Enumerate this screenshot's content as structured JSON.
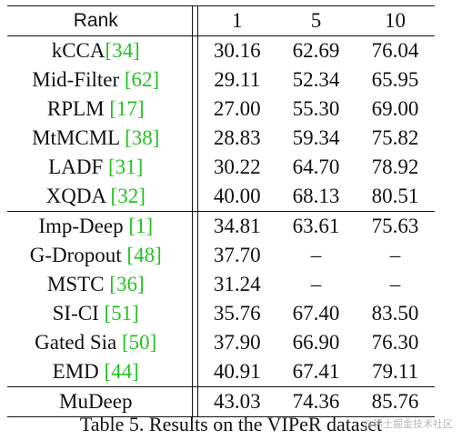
{
  "table": {
    "header": {
      "rank_label": "Rank",
      "columns": [
        "1",
        "5",
        "10"
      ]
    },
    "groups": [
      {
        "rows": [
          {
            "method": "kCCA",
            "ref": "[34]",
            "values": [
              "30.16",
              "62.69",
              "76.04"
            ]
          },
          {
            "method": "Mid-Filter ",
            "ref": "[62]",
            "values": [
              "29.11",
              "52.34",
              "65.95"
            ]
          },
          {
            "method": "RPLM ",
            "ref": "[17]",
            "values": [
              "27.00",
              "55.30",
              "69.00"
            ]
          },
          {
            "method": "MtMCML ",
            "ref": "[38]",
            "values": [
              "28.83",
              "59.34",
              "75.82"
            ]
          },
          {
            "method": "LADF ",
            "ref": "[31]",
            "values": [
              "30.22",
              "64.70",
              "78.92"
            ]
          },
          {
            "method": "XQDA ",
            "ref": "[32]",
            "values": [
              "40.00",
              "68.13",
              "80.51"
            ]
          }
        ]
      },
      {
        "rows": [
          {
            "method": "Imp-Deep ",
            "ref": "[1]",
            "values": [
              "34.81",
              "63.61",
              "75.63"
            ]
          },
          {
            "method": "G-Dropout ",
            "ref": "[48]",
            "values": [
              "37.70",
              "–",
              "–"
            ]
          },
          {
            "method": "MSTC ",
            "ref": "[36]",
            "values": [
              "31.24",
              "–",
              "–"
            ]
          },
          {
            "method": "SI-CI ",
            "ref": "[51]",
            "values": [
              "35.76",
              "67.40",
              "83.50"
            ]
          },
          {
            "method": "Gated Sia ",
            "ref": "[50]",
            "values": [
              "37.90",
              "66.90",
              "76.30"
            ]
          },
          {
            "method": "EMD ",
            "ref": "[44]",
            "values": [
              "40.91",
              "67.41",
              "79.11"
            ]
          }
        ]
      }
    ],
    "final": {
      "method": "MuDeep",
      "values": [
        "43.03",
        "74.36",
        "85.76"
      ]
    }
  },
  "caption": "Table 5. Results on the VIPeR dataset",
  "watermark": "@稀土掘金技术社区"
}
